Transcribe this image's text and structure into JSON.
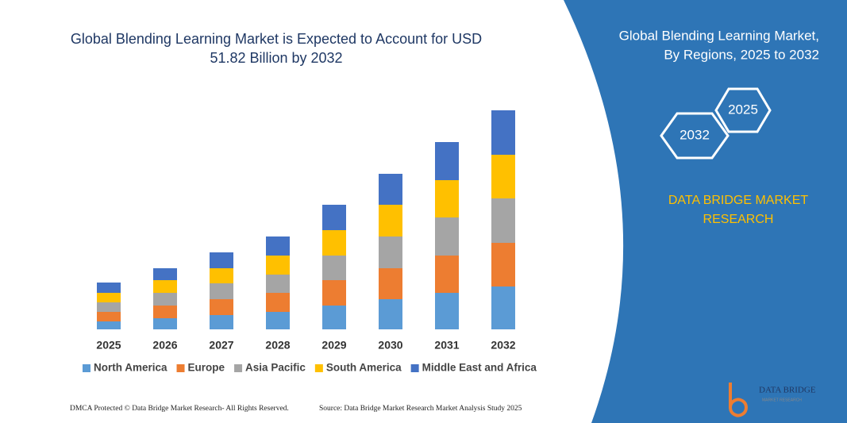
{
  "chart_data": {
    "type": "bar",
    "stacked": true,
    "title": [
      "Global Blending Learning Market is Expected to Account for USD",
      "51.82 Billion by 2032"
    ],
    "categories": [
      "2025",
      "2026",
      "2027",
      "2028",
      "2029",
      "2030",
      "2031",
      "2032"
    ],
    "series": [
      {
        "name": "North America",
        "color": "#5b9bd5",
        "values": [
          10,
          14,
          18,
          22,
          30,
          38,
          46,
          54
        ]
      },
      {
        "name": "Europe",
        "color": "#ed7d31",
        "values": [
          12,
          16,
          20,
          24,
          32,
          39,
          47,
          55
        ]
      },
      {
        "name": "Asia Pacific",
        "color": "#a5a5a5",
        "values": [
          12,
          16,
          20,
          23,
          31,
          40,
          48,
          56
        ]
      },
      {
        "name": "South America",
        "color": "#ffc000",
        "values": [
          12,
          16,
          19,
          24,
          32,
          40,
          47,
          55
        ]
      },
      {
        "name": "Middle East and Africa",
        "color": "#4472c4",
        "values": [
          13,
          15,
          20,
          24,
          32,
          39,
          48,
          56
        ]
      }
    ]
  },
  "side_panel": {
    "title": [
      "Global Blending Learning Market,",
      "By Regions, 2025 to 2032"
    ],
    "hexagons": [
      "2025",
      "2032"
    ],
    "brand": [
      "DATA BRIDGE MARKET",
      "RESEARCH"
    ]
  },
  "footer": {
    "left": "DMCA Protected © Data Bridge Market Research-  All Rights Reserved.",
    "right": "Source: Data Bridge Market Research  Market Analysis Study 2025",
    "logo": [
      "DATA BRIDGE",
      "MARKET RESEARCH"
    ]
  }
}
